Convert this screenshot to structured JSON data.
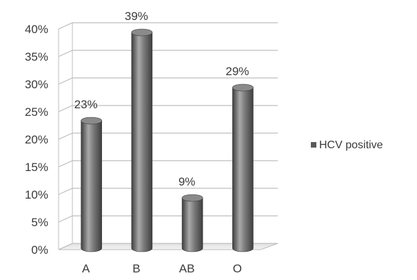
{
  "chart_data": {
    "type": "bar",
    "categories": [
      "A",
      "B",
      "AB",
      "O"
    ],
    "series": [
      {
        "name": "HCV positive",
        "values": [
          23,
          39,
          9,
          29
        ]
      }
    ],
    "data_labels": [
      "23%",
      "39%",
      "9%",
      "29%"
    ],
    "y_ticks": [
      "0%",
      "5%",
      "10%",
      "15%",
      "20%",
      "25%",
      "30%",
      "35%",
      "40%"
    ],
    "ylim": [
      0,
      40
    ],
    "grid": true,
    "style": "3d-cylinder",
    "legend_position": "right",
    "colors": {
      "bar": "#6f6f6f",
      "bar_highlight": "#a9a9a9",
      "bar_shadow": "#3e3e3e",
      "grid": "#bdbdbd"
    },
    "title": "",
    "xlabel": "",
    "ylabel": ""
  }
}
